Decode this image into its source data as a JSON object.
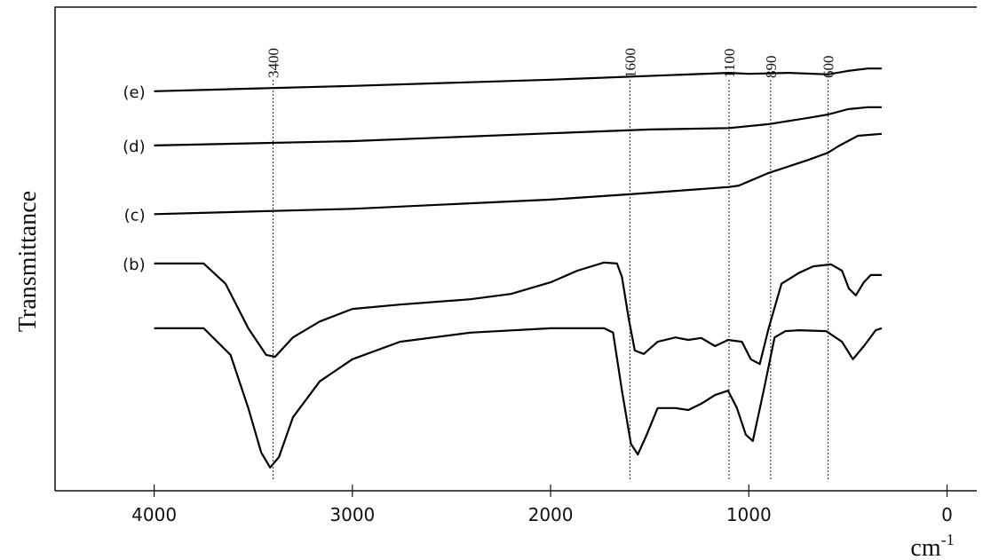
{
  "chart_data": {
    "type": "line",
    "y_label": "Transmittance",
    "x_label": {
      "text": "cm",
      "superscript": "-1"
    },
    "xlim": [
      4500,
      -150
    ],
    "xticks": [
      4000,
      3000,
      2000,
      1000,
      0
    ],
    "ylim": [
      0,
      100
    ],
    "reverse_x": true,
    "reference_lines": [
      3400,
      1600,
      1100,
      890,
      600
    ],
    "series": [
      {
        "name": "(e)",
        "color": "#000000",
        "x": [
          4000,
          3000,
          2000,
          1100,
          1000,
          800,
          600,
          500,
          400,
          330
        ],
        "values": [
          82.6,
          83.7,
          85.0,
          86.4,
          86.2,
          86.4,
          86.1,
          86.8,
          87.3,
          87.3
        ]
      },
      {
        "name": "(d)",
        "color": "#000000",
        "x": [
          4000,
          3000,
          2000,
          1500,
          1100,
          900,
          700,
          600,
          500,
          400,
          330
        ],
        "values": [
          71.4,
          72.3,
          73.9,
          74.7,
          75.0,
          75.8,
          77.1,
          77.8,
          78.9,
          79.3,
          79.3
        ]
      },
      {
        "name": "(c)",
        "color": "#000000",
        "x": [
          4000,
          3000,
          2000,
          1600,
          1300,
          1100,
          1050,
          900,
          700,
          600,
          550,
          450,
          330
        ],
        "values": [
          57.2,
          58.3,
          60.2,
          61.3,
          62.2,
          62.8,
          63.1,
          65.7,
          68.4,
          69.9,
          71.2,
          73.4,
          73.8
        ]
      },
      {
        "name": "(b)",
        "color": "#000000",
        "x": [
          4000,
          3750,
          3640,
          3525,
          3435,
          3390,
          3300,
          3165,
          3000,
          2760,
          2405,
          2200,
          2000,
          1865,
          1730,
          1665,
          1640,
          1605,
          1575,
          1530,
          1460,
          1370,
          1305,
          1240,
          1170,
          1105,
          1035,
          990,
          945,
          900,
          835,
          745,
          675,
          585,
          530,
          495,
          460,
          420,
          385,
          330
        ],
        "values": [
          47.0,
          47.0,
          42.8,
          33.6,
          28.1,
          27.7,
          31.7,
          35.0,
          37.6,
          38.5,
          39.6,
          40.7,
          43.1,
          45.5,
          47.2,
          47.0,
          44.2,
          35.4,
          29.0,
          28.3,
          30.8,
          31.7,
          31.2,
          31.6,
          29.9,
          31.2,
          30.8,
          27.2,
          26.2,
          33.6,
          42.8,
          45.1,
          46.4,
          46.8,
          45.5,
          41.8,
          40.4,
          43.1,
          44.6,
          44.6
        ]
      },
      {
        "color": "#000000",
        "x": [
          4000,
          3750,
          3615,
          3525,
          3460,
          3415,
          3370,
          3300,
          3165,
          3000,
          2760,
          2405,
          2000,
          1730,
          1685,
          1640,
          1595,
          1560,
          1515,
          1460,
          1370,
          1305,
          1240,
          1170,
          1105,
          1060,
          1015,
          980,
          925,
          870,
          815,
          745,
          610,
          530,
          475,
          420,
          360,
          330
        ],
        "values": [
          33.6,
          33.6,
          28.1,
          17.1,
          7.9,
          4.8,
          7.0,
          15.2,
          22.6,
          27.2,
          30.8,
          32.7,
          33.6,
          33.6,
          32.7,
          20.7,
          9.7,
          7.5,
          11.6,
          17.1,
          17.1,
          16.7,
          18.0,
          19.8,
          20.7,
          17.1,
          11.6,
          10.3,
          20.7,
          31.7,
          33.0,
          33.2,
          33.0,
          30.8,
          27.2,
          29.9,
          33.2,
          33.6
        ]
      }
    ]
  }
}
